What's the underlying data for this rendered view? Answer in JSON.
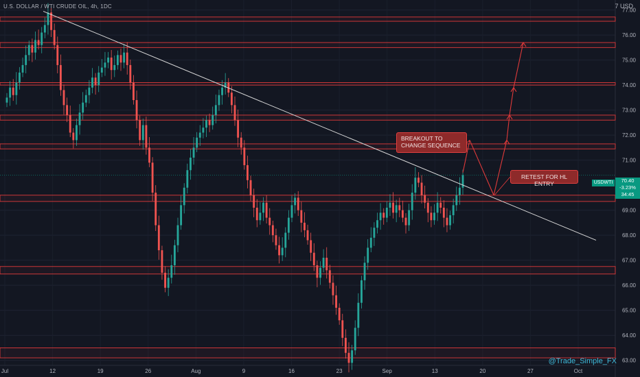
{
  "header": {
    "title": "U.S. DOLLAR / WTI CRUDE OIL, 4h, 1DC",
    "corner": "7 USD"
  },
  "watermark": "@Trade_Simple_FX",
  "annotations": {
    "breakout": "BREAKOUT TO CHANGE SEQUENCE",
    "retest": "RETEST FOR HL ENTRY"
  },
  "price_tag": {
    "symbol": "USDWTI",
    "price": "70.40",
    "change": "-3.23%",
    "countdown": "34:45"
  },
  "colors": {
    "background": "#131722",
    "up": "#26a69a",
    "down": "#ef5350",
    "zone": "#e03a3a",
    "arrow": "#e03a3a",
    "trend": "#d8d8d8",
    "label_bg": "#8e2a2a"
  },
  "chart_data": {
    "type": "candlestick",
    "title": "U.S. DOLLAR / WTI CRUDE OIL, 4h, 1DC",
    "ylim": [
      62.8,
      77.4
    ],
    "y_ticks": [
      "77.00",
      "76.00",
      "75.00",
      "74.00",
      "73.00",
      "72.00",
      "71.00",
      "69.00",
      "68.00",
      "67.00",
      "66.00",
      "65.00",
      "64.00",
      "63.00"
    ],
    "x_labels": [
      "Jul",
      "12",
      "19",
      "26",
      "Aug",
      "9",
      "16",
      "23",
      "Sep",
      "13",
      "20",
      "27",
      "Oct"
    ],
    "zones": [
      [
        76.55,
        76.72
      ],
      [
        75.5,
        75.7
      ],
      [
        74.0,
        74.1
      ],
      [
        72.6,
        72.8
      ],
      [
        71.45,
        71.65
      ],
      [
        69.35,
        69.6
      ],
      [
        66.45,
        66.75
      ],
      [
        63.1,
        63.5
      ]
    ],
    "last_price": 70.4,
    "trendline": {
      "from": [
        "Jul 6",
        76.95
      ],
      "to": [
        "Sep 28",
        67.8
      ]
    },
    "projection": [
      70.5,
      71.8,
      69.6,
      71.8,
      72.8,
      73.9,
      75.7
    ],
    "series": [
      {
        "closes": [
          73.5,
          73.9,
          73.6,
          74.1,
          74.5,
          74.8,
          75.2,
          75.6,
          75.3,
          75.8,
          75.6,
          76.1,
          76.4,
          76.9,
          76.2,
          75.6,
          74.8,
          73.8,
          73.2,
          72.8,
          72.1,
          71.8,
          72.4,
          72.9,
          73.3,
          73.6,
          73.9,
          74.3,
          74.0,
          74.5,
          74.7,
          74.9,
          75.1,
          74.6,
          74.8,
          75.2,
          74.9,
          75.3,
          74.8,
          74.1,
          73.4,
          72.6,
          71.8,
          72.4,
          71.5,
          70.9,
          69.7,
          68.4,
          67.4,
          66.5,
          65.9,
          66.3,
          66.8,
          67.6,
          68.4,
          69.2,
          69.9,
          70.6,
          71.1,
          71.5,
          71.9,
          72.1,
          72.3,
          72.6,
          72.4,
          72.8,
          73.2,
          73.6,
          73.9,
          74.1,
          73.7,
          73.2,
          72.6,
          71.9,
          71.5,
          70.8,
          70.2,
          69.6,
          69.1,
          68.6,
          68.9,
          69.3,
          68.7,
          68.4,
          68.0,
          67.6,
          67.2,
          67.5,
          68.1,
          68.7,
          69.2,
          69.5,
          69.0,
          68.5,
          68.2,
          67.8,
          67.3,
          66.8,
          66.3,
          66.7,
          67.1,
          66.6,
          66.1,
          65.6,
          65.1,
          64.6,
          63.9,
          63.3,
          62.9,
          63.4,
          64.3,
          65.3,
          66.2,
          66.9,
          67.5,
          67.9,
          68.3,
          68.6,
          68.9,
          68.7,
          69.1,
          69.3,
          68.9,
          69.2,
          69.0,
          68.7,
          68.4,
          69.0,
          69.7,
          70.3,
          70.1,
          69.6,
          69.3,
          68.9,
          68.6,
          68.9,
          69.3,
          69.1,
          68.7,
          68.4,
          68.8,
          69.2,
          69.6,
          69.9,
          70.4
        ]
      }
    ]
  }
}
